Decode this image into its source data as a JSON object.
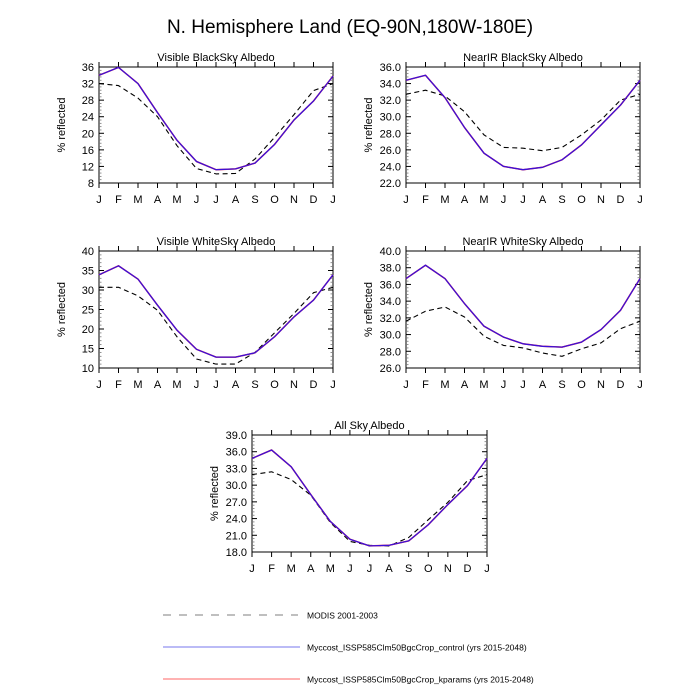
{
  "figure": {
    "title": "N. Hemisphere Land (EQ-90N,180W-180E)"
  },
  "legend": {
    "placement": "bottom-center",
    "entries": [
      {
        "label": "MODIS 2001-2003",
        "color": "#000000",
        "style": "dashed"
      },
      {
        "label": "Myccost_ISSP585Clm50BgcCrop_control (yrs 2015-2048)",
        "color": "#3333cc",
        "style": "solid"
      },
      {
        "label": "Myccost_ISSP585Clm50BgcCrop_kparams (yrs 2015-2048)",
        "color": "#ff6666",
        "style": "solid"
      }
    ],
    "legend_colors": {
      "modis": "#aaaaaa",
      "control": "#7777ee",
      "kparams": "#ff9999"
    }
  },
  "chart_data": [
    {
      "type": "line",
      "title": "Visible BlackSky Albedo",
      "xlabel": "",
      "ylabel": "% reflected",
      "categories": [
        "J",
        "F",
        "M",
        "A",
        "M",
        "J",
        "J",
        "A",
        "S",
        "O",
        "N",
        "D",
        "J"
      ],
      "ylim": [
        8,
        36
      ],
      "yticks": [
        "8",
        "12",
        "16",
        "20",
        "24",
        "28",
        "32",
        "36"
      ],
      "ytick_values": [
        8,
        12,
        16,
        20,
        24,
        28,
        32,
        36
      ],
      "series": [
        {
          "name": "MODIS 2001-2003",
          "values": [
            32.0,
            31.5,
            28.5,
            24.0,
            17.0,
            11.5,
            10.2,
            10.3,
            13.8,
            19.0,
            24.5,
            30.3,
            32.0
          ]
        },
        {
          "name": "Myccost_ISSP585Clm50BgcCrop_kparams (yrs 2015-2048)",
          "values": [
            34.0,
            35.9,
            32.0,
            25.0,
            18.3,
            13.2,
            11.2,
            11.4,
            12.8,
            17.3,
            23.2,
            27.8,
            33.8
          ]
        },
        {
          "name": "Myccost_ISSP585Clm50BgcCrop_control (yrs 2015-2048)",
          "values": [
            34.0,
            35.9,
            32.0,
            25.0,
            18.3,
            13.2,
            11.2,
            11.4,
            12.8,
            17.3,
            23.2,
            27.8,
            33.8
          ]
        }
      ]
    },
    {
      "type": "line",
      "title": "NearIR BlackSky Albedo",
      "xlabel": "",
      "ylabel": "% reflected",
      "categories": [
        "J",
        "F",
        "M",
        "A",
        "M",
        "J",
        "J",
        "A",
        "S",
        "O",
        "N",
        "D",
        "J"
      ],
      "ylim": [
        22,
        36
      ],
      "yticks": [
        "22.0",
        "24.0",
        "26.0",
        "28.0",
        "30.0",
        "32.0",
        "34.0",
        "36.0"
      ],
      "ytick_values": [
        22,
        24,
        26,
        28,
        30,
        32,
        34,
        36
      ],
      "series": [
        {
          "name": "MODIS 2001-2003",
          "values": [
            32.7,
            33.2,
            32.5,
            30.6,
            27.8,
            26.3,
            26.2,
            25.9,
            26.3,
            27.8,
            29.6,
            32.0,
            32.7
          ]
        },
        {
          "name": "Myccost_ISSP585Clm50BgcCrop_kparams (yrs 2015-2048)",
          "values": [
            34.4,
            35.0,
            32.3,
            28.7,
            25.6,
            24.0,
            23.6,
            23.9,
            24.8,
            26.6,
            29.0,
            31.4,
            34.4
          ]
        },
        {
          "name": "Myccost_ISSP585Clm50BgcCrop_control (yrs 2015-2048)",
          "values": [
            34.4,
            35.0,
            32.3,
            28.7,
            25.6,
            24.0,
            23.6,
            23.9,
            24.8,
            26.6,
            29.0,
            31.4,
            34.4
          ]
        }
      ]
    },
    {
      "type": "line",
      "title": "Visible WhiteSky Albedo",
      "xlabel": "",
      "ylabel": "% reflected",
      "categories": [
        "J",
        "F",
        "M",
        "A",
        "M",
        "J",
        "J",
        "A",
        "S",
        "O",
        "N",
        "D",
        "J"
      ],
      "ylim": [
        10,
        40
      ],
      "yticks": [
        "10",
        "15",
        "20",
        "25",
        "30",
        "35",
        "40"
      ],
      "ytick_values": [
        10,
        15,
        20,
        25,
        30,
        35,
        40
      ],
      "series": [
        {
          "name": "MODIS 2001-2003",
          "values": [
            30.7,
            30.7,
            28.5,
            24.8,
            18.0,
            12.3,
            11.0,
            11.0,
            14.0,
            19.0,
            24.0,
            29.3,
            30.7
          ]
        },
        {
          "name": "Myccost_ISSP585Clm50BgcCrop_kparams (yrs 2015-2048)",
          "values": [
            33.9,
            36.2,
            32.8,
            26.1,
            19.7,
            14.8,
            12.8,
            12.8,
            13.9,
            18.0,
            23.1,
            27.4,
            33.9
          ]
        },
        {
          "name": "Myccost_ISSP585Clm50BgcCrop_control (yrs 2015-2048)",
          "values": [
            33.9,
            36.2,
            32.8,
            26.1,
            19.7,
            14.8,
            12.8,
            12.8,
            13.9,
            18.0,
            23.1,
            27.4,
            33.9
          ]
        }
      ]
    },
    {
      "type": "line",
      "title": "NearIR WhiteSky Albedo",
      "xlabel": "",
      "ylabel": "% reflected",
      "categories": [
        "J",
        "F",
        "M",
        "A",
        "M",
        "J",
        "J",
        "A",
        "S",
        "O",
        "N",
        "D",
        "J"
      ],
      "ylim": [
        26,
        40
      ],
      "yticks": [
        "26.0",
        "28.0",
        "30.0",
        "32.0",
        "34.0",
        "36.0",
        "38.0",
        "40.0"
      ],
      "ytick_values": [
        26,
        28,
        30,
        32,
        34,
        36,
        38,
        40
      ],
      "series": [
        {
          "name": "MODIS 2001-2003",
          "values": [
            31.6,
            32.8,
            33.3,
            32.1,
            29.8,
            28.7,
            28.4,
            27.8,
            27.4,
            28.3,
            29.0,
            30.7,
            31.6
          ]
        },
        {
          "name": "Myccost_ISSP585Clm50BgcCrop_kparams (yrs 2015-2048)",
          "values": [
            36.7,
            38.3,
            36.7,
            33.7,
            31.0,
            29.7,
            28.9,
            28.6,
            28.5,
            29.1,
            30.6,
            32.9,
            36.7
          ]
        },
        {
          "name": "Myccost_ISSP585Clm50BgcCrop_control (yrs 2015-2048)",
          "values": [
            36.7,
            38.3,
            36.7,
            33.7,
            31.0,
            29.7,
            28.9,
            28.6,
            28.5,
            29.1,
            30.6,
            32.9,
            36.7
          ]
        }
      ]
    },
    {
      "type": "line",
      "title": "All Sky Albedo",
      "xlabel": "",
      "ylabel": "% reflected",
      "categories": [
        "J",
        "F",
        "M",
        "A",
        "M",
        "J",
        "J",
        "A",
        "S",
        "O",
        "N",
        "D",
        "J"
      ],
      "ylim": [
        18,
        39
      ],
      "yticks": [
        "18.0",
        "21.0",
        "24.0",
        "27.0",
        "30.0",
        "33.0",
        "36.0",
        "39.0"
      ],
      "ytick_values": [
        18,
        21,
        24,
        27,
        30,
        33,
        36,
        39
      ],
      "series": [
        {
          "name": "MODIS 2001-2003",
          "values": [
            31.9,
            32.4,
            31.0,
            28.2,
            23.3,
            19.9,
            19.2,
            19.1,
            20.6,
            23.8,
            26.9,
            30.8,
            31.9
          ]
        },
        {
          "name": "Myccost_ISSP585Clm50BgcCrop_kparams (yrs 2015-2048)",
          "values": [
            34.8,
            36.3,
            33.3,
            28.3,
            23.5,
            20.3,
            19.1,
            19.2,
            20.0,
            22.9,
            26.5,
            29.9,
            34.8
          ]
        },
        {
          "name": "Myccost_ISSP585Clm50BgcCrop_control (yrs 2015-2048)",
          "values": [
            34.8,
            36.3,
            33.3,
            28.3,
            23.5,
            20.3,
            19.1,
            19.2,
            20.0,
            22.9,
            26.5,
            29.9,
            34.8
          ]
        }
      ]
    }
  ]
}
